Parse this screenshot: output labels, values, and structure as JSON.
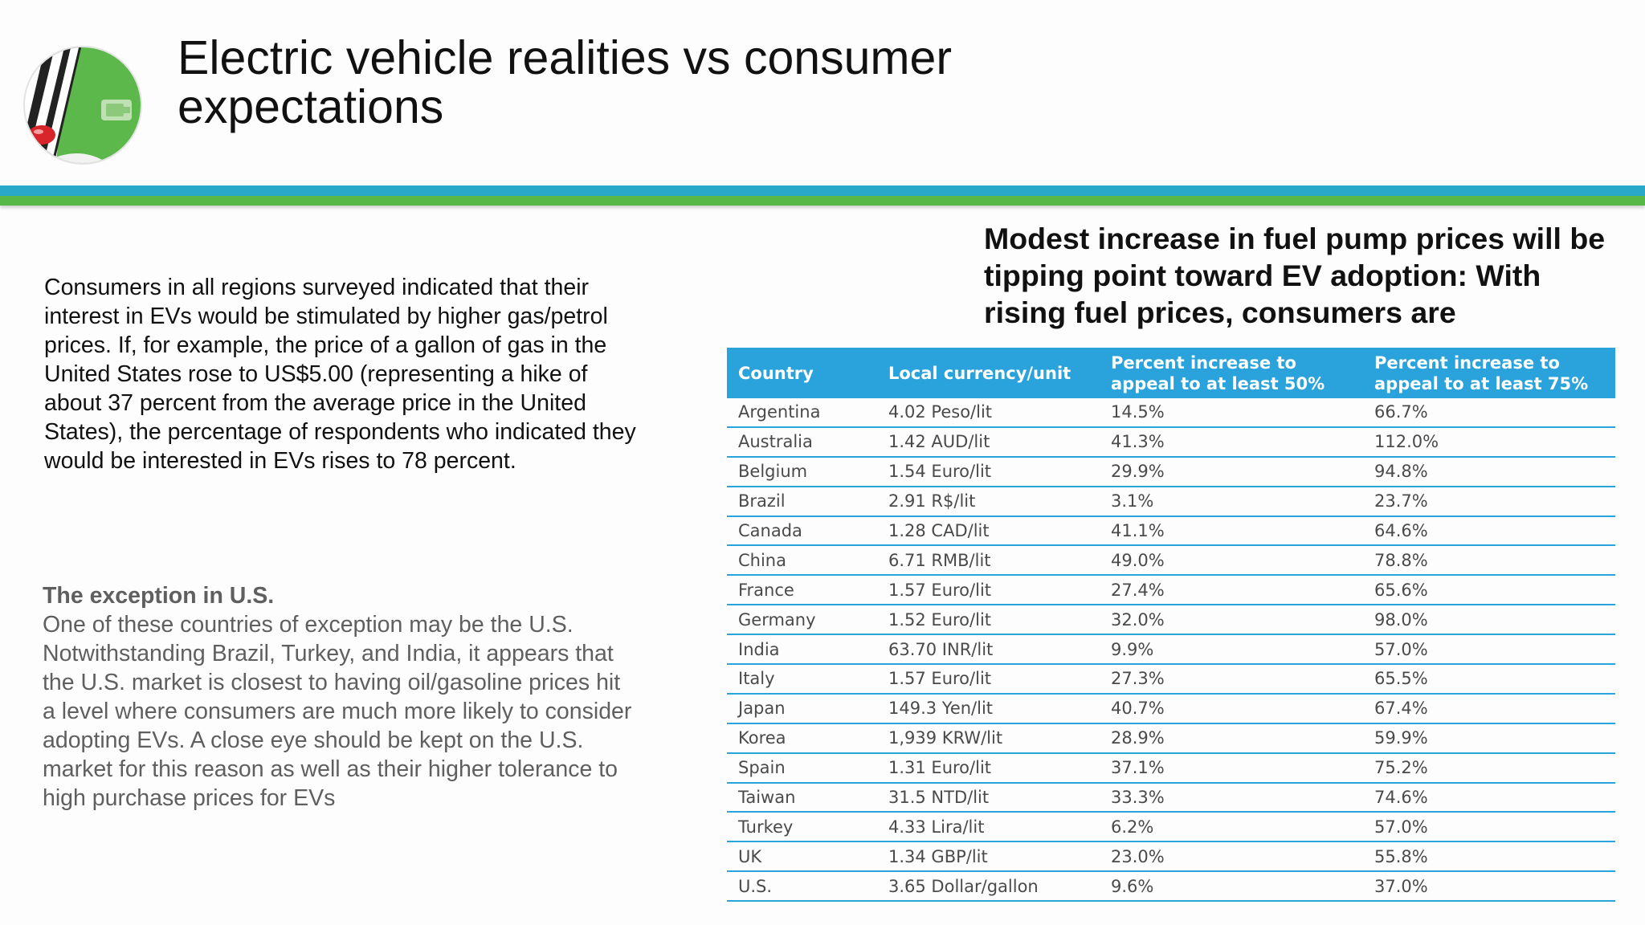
{
  "header": {
    "title": "Electric vehicle realities vs consumer expectations",
    "logo_icon": "electric-car-charging-icon"
  },
  "intro": {
    "text": "Consumers in all regions surveyed indicated that their interest in EVs would be stimulated by higher gas/petrol prices. If, for example, the price of a gallon of gas in the United States rose to US$5.00 (representing a hike of about 37 percent from the average price in the United States), the percentage of respondents who indicated they would be interested in EVs rises to 78 percent."
  },
  "exception": {
    "heading": "The exception in U.S.",
    "body": "One of these countries of exception may be the U.S. Notwithstanding Brazil, Turkey, and India, it appears that the U.S. market is closest to having oil/gasoline prices hit a level where consumers are much more likely to consider adopting EVs. A close eye should be kept on the U.S. market for this reason as well as their higher tolerance to high purchase prices for EVs"
  },
  "table_section": {
    "heading": "Modest increase in fuel pump prices will be tipping point toward EV adoption: With rising fuel prices, consumers are"
  },
  "table": {
    "columns": [
      "Country",
      "Local currency/unit",
      "Percent increase to appeal to at least 50%",
      "Percent increase to appeal to at least 75%"
    ],
    "rows": [
      [
        "Argentina",
        "4.02 Peso/lit",
        "14.5%",
        "66.7%"
      ],
      [
        "Australia",
        "1.42 AUD/lit",
        "41.3%",
        "112.0%"
      ],
      [
        "Belgium",
        "1.54 Euro/lit",
        "29.9%",
        "94.8%"
      ],
      [
        "Brazil",
        "2.91 R$/lit",
        "3.1%",
        "23.7%"
      ],
      [
        "Canada",
        "1.28 CAD/lit",
        "41.1%",
        "64.6%"
      ],
      [
        "China",
        "6.71 RMB/lit",
        "49.0%",
        "78.8%"
      ],
      [
        "France",
        "1.57 Euro/lit",
        "27.4%",
        "65.6%"
      ],
      [
        "Germany",
        "1.52 Euro/lit",
        "32.0%",
        "98.0%"
      ],
      [
        "India",
        "63.70 INR/lit",
        "9.9%",
        "57.0%"
      ],
      [
        "Italy",
        "1.57 Euro/lit",
        "27.3%",
        "65.5%"
      ],
      [
        "Japan",
        "149.3 Yen/lit",
        "40.7%",
        "67.4%"
      ],
      [
        "Korea",
        "1,939 KRW/lit",
        "28.9%",
        "59.9%"
      ],
      [
        "Spain",
        "1.31 Euro/lit",
        "37.1%",
        "75.2%"
      ],
      [
        "Taiwan",
        "31.5 NTD/lit",
        "33.3%",
        "74.6%"
      ],
      [
        "Turkey",
        "4.33 Lira/lit",
        "6.2%",
        "57.0%"
      ],
      [
        "UK",
        "1.34 GBP/lit",
        "23.0%",
        "55.8%"
      ],
      [
        "U.S.",
        "3.65 Dollar/gallon",
        "9.6%",
        "37.0%"
      ]
    ]
  },
  "colors": {
    "table_header": "#2aa3dc",
    "band_blue": "#29a8c7",
    "band_green": "#57b847",
    "logo_green": "#5cb84a"
  }
}
